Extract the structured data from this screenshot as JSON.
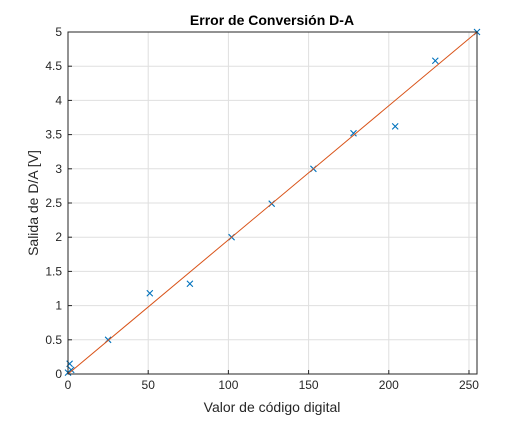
{
  "chart_data": {
    "type": "scatter",
    "title": "Error de Conversión D-A",
    "xlabel": "Valor de código digital",
    "ylabel": "Salida de D/A [V]",
    "xlim": [
      0,
      255
    ],
    "ylim": [
      0,
      5
    ],
    "xticks": [
      0,
      50,
      100,
      150,
      200,
      250
    ],
    "yticks": [
      0,
      0.5,
      1,
      1.5,
      2,
      2.5,
      3,
      3.5,
      4,
      4.5,
      5
    ],
    "xtick_labels": [
      "0",
      "50",
      "100",
      "150",
      "200",
      "250"
    ],
    "ytick_labels": [
      "0",
      "0.5",
      "1",
      "1.5",
      "2",
      "2.5",
      "3",
      "3.5",
      "4",
      "4.5",
      "5"
    ],
    "grid": true,
    "series": [
      {
        "marker": "x",
        "color": "#0072BD",
        "x": [
          0,
          1,
          2,
          25,
          51,
          76,
          102,
          127,
          153,
          178,
          204,
          229,
          255
        ],
        "y": [
          0.02,
          0.15,
          0.06,
          0.5,
          1.18,
          1.32,
          2.0,
          2.49,
          3.0,
          3.52,
          3.62,
          4.58,
          5.0
        ]
      },
      {
        "style": "line",
        "color": "#D95319",
        "x": [
          0,
          255
        ],
        "y": [
          0,
          5
        ]
      }
    ]
  }
}
